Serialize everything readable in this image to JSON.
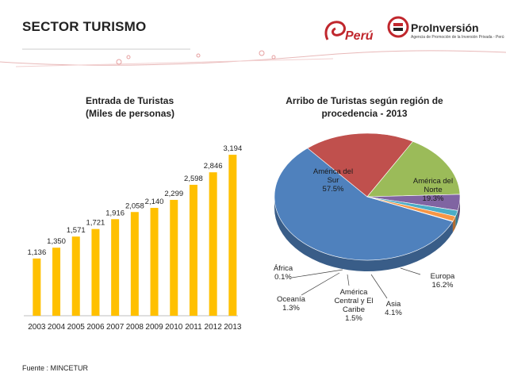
{
  "header": {
    "title": "SECTOR TURISMO",
    "peru_logo_text": "Perú",
    "proinversion_name": "ProInversión",
    "proinversion_tagline": "Agencia de Promoción de la Inversión Privada - Perú"
  },
  "footer": {
    "source": "Fuente : MINCETUR"
  },
  "colors": {
    "bar": "#FFC000",
    "bar_stroke": "#E0A800",
    "brand_red": "#C0272D"
  },
  "chart_data": [
    {
      "type": "bar",
      "title_line1": "Entrada de Turistas",
      "title_line2": "(Miles de personas)",
      "categories": [
        "2003",
        "2004",
        "2005",
        "2006",
        "2007",
        "2008",
        "2009",
        "2010",
        "2011",
        "2012",
        "2013"
      ],
      "values": [
        1136,
        1350,
        1571,
        1721,
        1916,
        2058,
        2140,
        2299,
        2598,
        2846,
        3194
      ],
      "value_labels": [
        "1,136",
        "1,350",
        "1,571",
        "1,721",
        "1,916",
        "2,058",
        "2,140",
        "2,299",
        "2,598",
        "2,846",
        "3,194"
      ],
      "ylim": [
        0,
        3400
      ],
      "grid": false,
      "legend": "none"
    },
    {
      "type": "pie",
      "title_line1": "Arribo de Turistas según región de",
      "title_line2": "procedencia - 2013",
      "slices": [
        {
          "name_lines": [
            "América del",
            "Sur"
          ],
          "pct_label": "57.5%",
          "value": 57.5,
          "color": "#4F81BD"
        },
        {
          "name_lines": [
            "América del",
            "Norte"
          ],
          "pct_label": "19.3%",
          "value": 19.3,
          "color": "#C0504D"
        },
        {
          "name_lines": [
            "Europa"
          ],
          "pct_label": "16.2%",
          "value": 16.2,
          "color": "#9BBB59"
        },
        {
          "name_lines": [
            "Asia"
          ],
          "pct_label": "4.1%",
          "value": 4.1,
          "color": "#8064A2"
        },
        {
          "name_lines": [
            "América",
            "Central y El",
            "Caribe"
          ],
          "pct_label": "1.5%",
          "value": 1.5,
          "color": "#4BACC6"
        },
        {
          "name_lines": [
            "Oceanía"
          ],
          "pct_label": "1.3%",
          "value": 1.3,
          "color": "#F79646"
        },
        {
          "name_lines": [
            "África"
          ],
          "pct_label": "0.1%",
          "value": 0.1,
          "color": "#2C4D75"
        }
      ],
      "legend": "none"
    }
  ]
}
